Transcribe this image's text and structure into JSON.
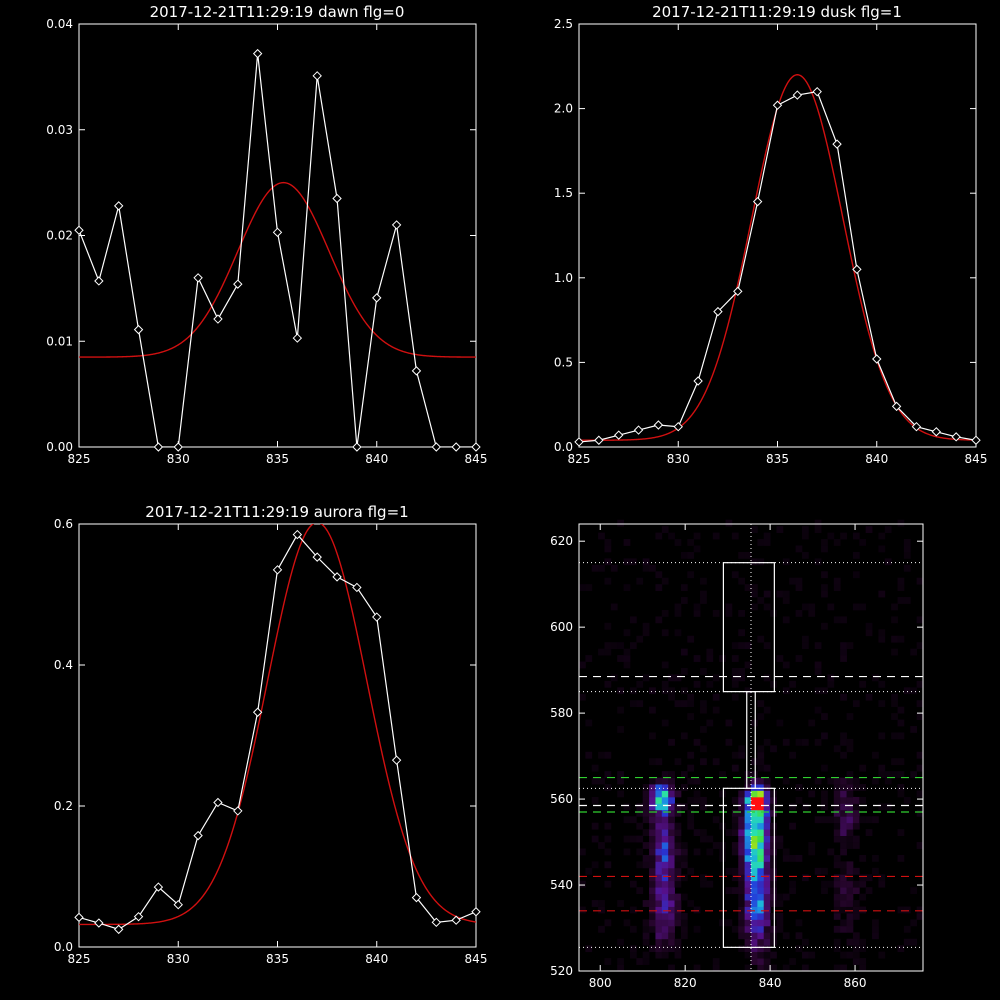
{
  "chart_data": [
    {
      "type": "line",
      "title": "2017-12-21T11:29:19 dawn flg=0",
      "xlim": [
        825,
        845
      ],
      "ylim": [
        0,
        0.04
      ],
      "x_ticks": [
        "825",
        "830",
        "835",
        "840",
        "845"
      ],
      "y_ticks": [
        "0.00",
        "0.01",
        "0.02",
        "0.03",
        "0.04"
      ],
      "series": [
        {
          "kind": "data",
          "color": "#ffffff",
          "marker": "diamond",
          "x": [
            825,
            826,
            827,
            828,
            829,
            830,
            831,
            832,
            833,
            834,
            835,
            836,
            837,
            838,
            839,
            840,
            841,
            842,
            843,
            844,
            845
          ],
          "y": [
            0.0205,
            0.0157,
            0.0228,
            0.0111,
            0.0,
            0.0,
            0.016,
            0.0121,
            0.0154,
            0.0372,
            0.0203,
            0.0103,
            0.0351,
            0.0235,
            0.0,
            0.0141,
            0.021,
            0.0072,
            0.0,
            0.0,
            0.0
          ]
        },
        {
          "kind": "fit",
          "color": "#d01010",
          "gauss": {
            "amp": 0.0165,
            "center": 835.3,
            "sigma": 2.3,
            "offset": 0.0085
          }
        }
      ]
    },
    {
      "type": "line",
      "title": "2017-12-21T11:29:19 dusk flg=1",
      "xlim": [
        825,
        845
      ],
      "ylim": [
        0,
        2.5
      ],
      "x_ticks": [
        "825",
        "830",
        "835",
        "840",
        "845"
      ],
      "y_ticks": [
        "0.0",
        "0.5",
        "1.0",
        "1.5",
        "2.0",
        "2.5"
      ],
      "series": [
        {
          "kind": "data",
          "color": "#ffffff",
          "marker": "diamond",
          "x": [
            825,
            826,
            827,
            828,
            829,
            830,
            831,
            832,
            833,
            834,
            835,
            836,
            837,
            838,
            839,
            840,
            841,
            842,
            843,
            844,
            845
          ],
          "y": [
            0.03,
            0.04,
            0.07,
            0.1,
            0.13,
            0.12,
            0.39,
            0.8,
            0.92,
            1.45,
            2.02,
            2.08,
            2.1,
            1.79,
            1.05,
            0.52,
            0.24,
            0.12,
            0.09,
            0.06,
            0.04
          ]
        },
        {
          "kind": "fit",
          "color": "#d01010",
          "gauss": {
            "amp": 2.16,
            "center": 836.0,
            "sigma": 2.3,
            "offset": 0.04
          }
        }
      ]
    },
    {
      "type": "line",
      "title": "2017-12-21T11:29:19 aurora flg=1",
      "xlim": [
        825,
        845
      ],
      "ylim": [
        0,
        0.6
      ],
      "x_ticks": [
        "825",
        "830",
        "835",
        "840",
        "845"
      ],
      "y_ticks": [
        "0.0",
        "0.2",
        "0.4",
        "0.6"
      ],
      "series": [
        {
          "kind": "data",
          "color": "#ffffff",
          "marker": "diamond",
          "x": [
            825,
            826,
            827,
            828,
            829,
            830,
            831,
            832,
            833,
            834,
            835,
            836,
            837,
            838,
            839,
            840,
            841,
            842,
            843,
            844,
            845
          ],
          "y": [
            0.042,
            0.034,
            0.025,
            0.043,
            0.085,
            0.06,
            0.158,
            0.205,
            0.193,
            0.333,
            0.535,
            0.585,
            0.553,
            0.525,
            0.51,
            0.468,
            0.265,
            0.07,
            0.035,
            0.038,
            0.05
          ]
        },
        {
          "kind": "fit",
          "color": "#d01010",
          "gauss": {
            "amp": 0.57,
            "center": 837.0,
            "sigma": 2.5,
            "offset": 0.032
          }
        }
      ]
    },
    {
      "type": "heatmap",
      "title": "",
      "xlim": [
        795,
        876
      ],
      "ylim": [
        520,
        624
      ],
      "x_ticks": [
        "800",
        "820",
        "840",
        "860"
      ],
      "y_ticks": [
        "520",
        "540",
        "560",
        "580",
        "600",
        "620"
      ],
      "colormap": [
        "#000000",
        "#2a0630",
        "#55108a",
        "#2438d8",
        "#1aa8e6",
        "#28e0b0",
        "#40e040",
        "#f0e000",
        "#ff1010"
      ],
      "sources": [
        {
          "x": 814.5,
          "y": 560.5,
          "sx": 1.8,
          "sy": 2.2,
          "amp": 0.62
        },
        {
          "x": 815,
          "y": 548,
          "sx": 2.0,
          "sy": 7.0,
          "amp": 0.33
        },
        {
          "x": 815,
          "y": 533,
          "sx": 2.2,
          "sy": 5.0,
          "amp": 0.22
        },
        {
          "x": 837,
          "y": 560,
          "sx": 1.4,
          "sy": 1.8,
          "amp": 1.0
        },
        {
          "x": 836.5,
          "y": 553,
          "sx": 2.0,
          "sy": 6.0,
          "amp": 0.62
        },
        {
          "x": 837,
          "y": 538,
          "sx": 2.0,
          "sy": 9.0,
          "amp": 0.45
        },
        {
          "x": 858,
          "y": 557,
          "sx": 2.0,
          "sy": 5.0,
          "amp": 0.18
        },
        {
          "x": 858,
          "y": 538,
          "sx": 2.5,
          "sy": 6.0,
          "amp": 0.1
        }
      ],
      "overlays": {
        "white_dotted_h": [
          525.5,
          562.5,
          585,
          615
        ],
        "white_dashed_h": [
          558.5,
          588.5
        ],
        "green_dashed_h": [
          557,
          565
        ],
        "red_dashed_h": [
          534,
          542
        ],
        "vertical_dotted_x": 835.5,
        "boxes": [
          {
            "x0": 829,
            "x1": 841,
            "y0": 525.5,
            "y1": 562.5
          },
          {
            "x0": 829,
            "x1": 841,
            "y0": 585,
            "y1": 615
          }
        ],
        "connector": {
          "x0": 834.5,
          "x1": 836.5,
          "y0": 562.5,
          "y1": 585
        }
      }
    }
  ]
}
